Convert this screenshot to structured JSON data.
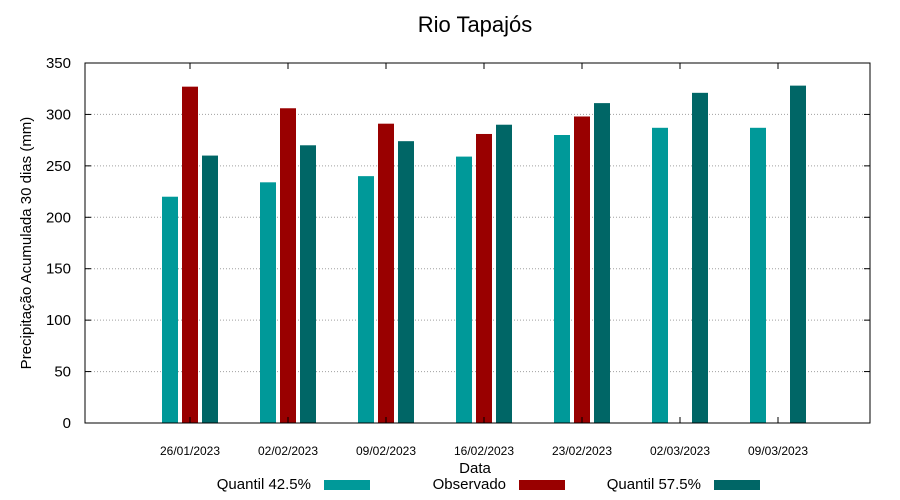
{
  "chart_data": {
    "type": "bar",
    "title": "Rio Tapajós",
    "xlabel": "Data",
    "ylabel": "Precipitação Acumulada 30 dias (mm)",
    "ylim": [
      0,
      350
    ],
    "yticks": [
      0,
      50,
      100,
      150,
      200,
      250,
      300,
      350
    ],
    "grid": "horizontal dotted",
    "legend_position": "bottom",
    "categories": [
      "26/01/2023",
      "02/02/2023",
      "09/02/2023",
      "16/02/2023",
      "23/02/2023",
      "02/03/2023",
      "09/03/2023"
    ],
    "series": [
      {
        "name": "Quantil 42.5%",
        "color": "#009999",
        "values": [
          220,
          234,
          240,
          259,
          280,
          287,
          287
        ]
      },
      {
        "name": "Observado",
        "color": "#990000",
        "values": [
          327,
          306,
          291,
          281,
          298,
          null,
          null
        ]
      },
      {
        "name": "Quantil 57.5%",
        "color": "#006666",
        "values": [
          260,
          270,
          274,
          290,
          311,
          321,
          328
        ]
      }
    ]
  }
}
